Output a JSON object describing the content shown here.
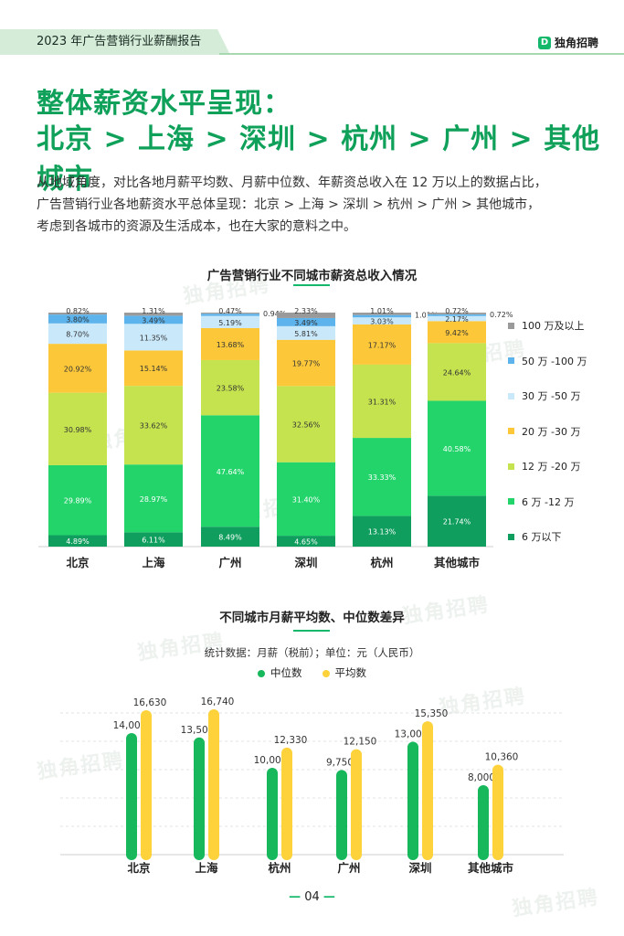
{
  "header": {
    "title": "2023 年广告营销行业薪酬报告",
    "brand": "独角招聘"
  },
  "watermark": "独角招聘",
  "headline": {
    "line1": "整体薪资水平呈现：",
    "line2": "北京 > 上海 > 深圳 > 杭州 > 广州 > 其他城市"
  },
  "intro": {
    "line1": "从地域角度，对比各地月薪平均数、月薪中位数、年薪资总收入在 12 万以上的数据占比，",
    "line2": "广告营销行业各地薪资水平总体呈现：北京 > 上海 > 深圳 > 杭州 > 广州 > 其他城市，",
    "line3": "考虑到各城市的资源及生活成本，也在大家的意料之中。"
  },
  "page_number": "04",
  "colors": {
    "brand_green": "#13b86a",
    "headline_green": "#0fa05a"
  },
  "chart_data": [
    {
      "type": "bar",
      "stacked": true,
      "title": "广告营销行业不同城市薪资总收入情况",
      "categories": [
        "北京",
        "上海",
        "广州",
        "深圳",
        "杭州",
        "其他城市"
      ],
      "series": [
        {
          "name": "6 万以下",
          "color": "#0f9e5e",
          "values": [
            4.89,
            6.11,
            8.49,
            4.65,
            13.13,
            21.74
          ],
          "labels": [
            "4.89%",
            "6.11%",
            "8.49%",
            "4.65%",
            "13.13%",
            "21.74%"
          ]
        },
        {
          "name": "6 万 -12 万",
          "color": "#22d46a",
          "values": [
            29.89,
            28.97,
            47.64,
            31.4,
            33.33,
            40.58
          ],
          "labels": [
            "29.89%",
            "28.97%",
            "47.64%",
            "31.40%",
            "33.33%",
            "40.58%"
          ]
        },
        {
          "name": "12 万 -20 万",
          "color": "#c5e34f",
          "values": [
            30.98,
            33.62,
            23.58,
            32.56,
            31.31,
            24.64
          ],
          "labels": [
            "30.98%",
            "33.62%",
            "23.58%",
            "32.56%",
            "31.31%",
            "24.64%"
          ]
        },
        {
          "name": "20 万 -30 万",
          "color": "#fcc83a",
          "values": [
            20.92,
            15.14,
            13.68,
            19.77,
            17.17,
            9.42
          ],
          "labels": [
            "20.92%",
            "15.14%",
            "13.68%",
            "19.77%",
            "17.17%",
            "9.42%"
          ]
        },
        {
          "name": "30 万 -50 万",
          "color": "#c9e8fa",
          "values": [
            8.7,
            11.35,
            5.19,
            5.81,
            3.03,
            2.17
          ],
          "labels": [
            "8.70%",
            "11.35%",
            "5.19%",
            "5.81%",
            "3.03%",
            "2.17%"
          ]
        },
        {
          "name": "50 万 -100 万",
          "color": "#5db3ec",
          "values": [
            3.8,
            3.49,
            0.94,
            3.49,
            1.01,
            0.72
          ],
          "labels": [
            "3.80%",
            "3.49%",
            "0.94%",
            "3.49%",
            "1.01%",
            "0.72%"
          ]
        },
        {
          "name": "100 万及以上",
          "color": "#9a9a9a",
          "values": [
            0.82,
            1.31,
            0.47,
            2.33,
            1.01,
            0.72
          ],
          "labels": [
            "0.82%",
            "1.31%",
            "0.47%",
            "2.33%",
            "1.01%",
            "0.72%"
          ]
        }
      ],
      "legend_position": "right",
      "ylim": [
        0,
        100
      ]
    },
    {
      "type": "bar",
      "title": "不同城市月薪平均数、中位数差异",
      "subtitle": "统计数据：月薪（税前）；单位：元（人民币）",
      "categories": [
        "北京",
        "上海",
        "杭州",
        "广州",
        "深圳",
        "其他城市"
      ],
      "series": [
        {
          "name": "中位数",
          "color": "#17b85c",
          "values": [
            14000,
            13500,
            10000,
            9750,
            13000,
            8000
          ],
          "labels": [
            "14,000",
            "13,500",
            "10,000",
            "9,750",
            "13,000",
            "8,000"
          ]
        },
        {
          "name": "平均数",
          "color": "#fdd23a",
          "values": [
            16630,
            16740,
            12330,
            12150,
            15350,
            10360
          ],
          "labels": [
            "16,630",
            "16,740",
            "12,330",
            "12,150",
            "15,350",
            "10,360"
          ]
        }
      ],
      "legend_position": "top",
      "grid": true,
      "ylim": [
        0,
        20000
      ]
    }
  ]
}
